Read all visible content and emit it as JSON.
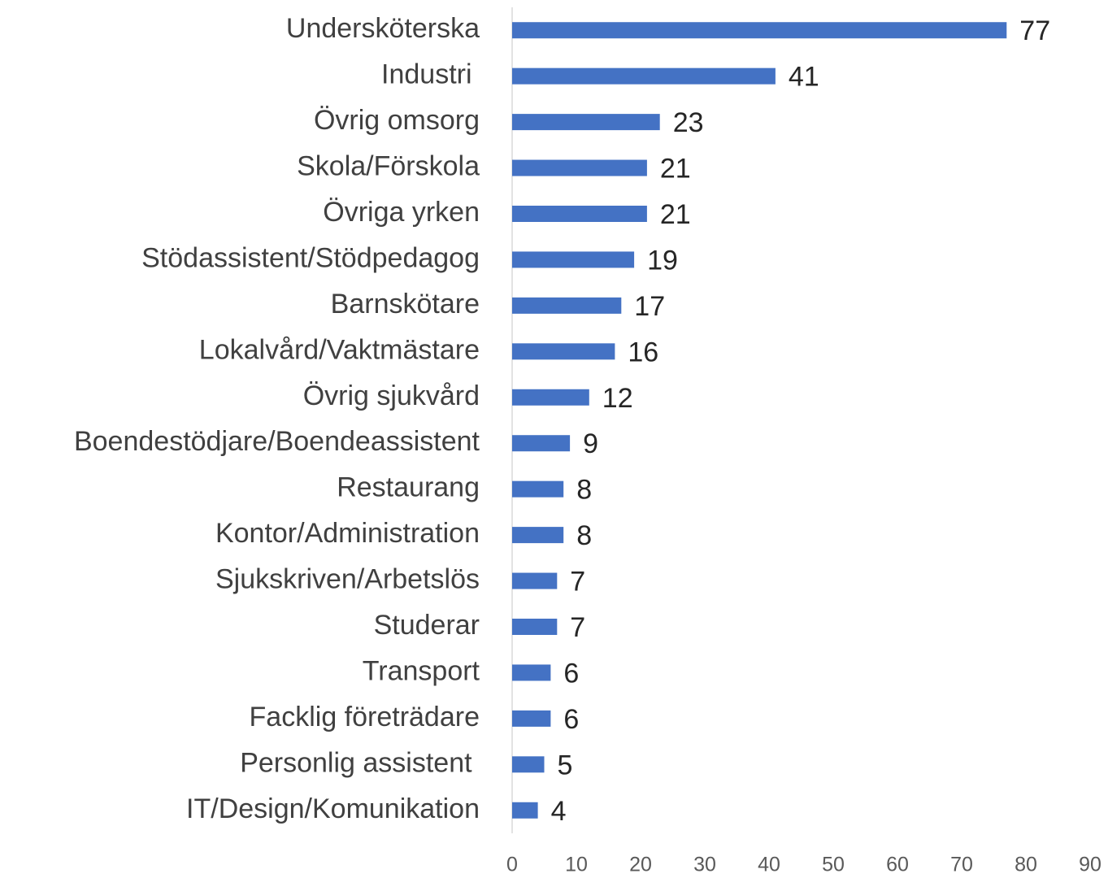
{
  "chart_data": {
    "type": "barh",
    "categories": [
      "Undersköterska",
      "Industri ",
      "Övrig omsorg",
      "Skola/Förskola",
      "Övriga yrken",
      "Stödassistent/Stödpedagog",
      "Barnskötare",
      "Lokalvård/Vaktmästare",
      "Övrig sjukvård",
      "Boendestödjare/Boendeassistent",
      "Restaurang",
      "Kontor/Administration",
      "Sjukskriven/Arbetslös",
      "Studerar",
      "Transport",
      "Facklig företrädare",
      "Personlig assistent ",
      "IT/Design/Komunikation"
    ],
    "values": [
      77,
      41,
      23,
      21,
      21,
      19,
      17,
      16,
      12,
      9,
      8,
      8,
      7,
      7,
      6,
      6,
      5,
      4
    ],
    "color": "#4472c4",
    "xlim": [
      0,
      90
    ],
    "xticks": [
      0,
      10,
      20,
      30,
      40,
      50,
      60,
      70,
      80,
      90
    ],
    "grid": false
  }
}
